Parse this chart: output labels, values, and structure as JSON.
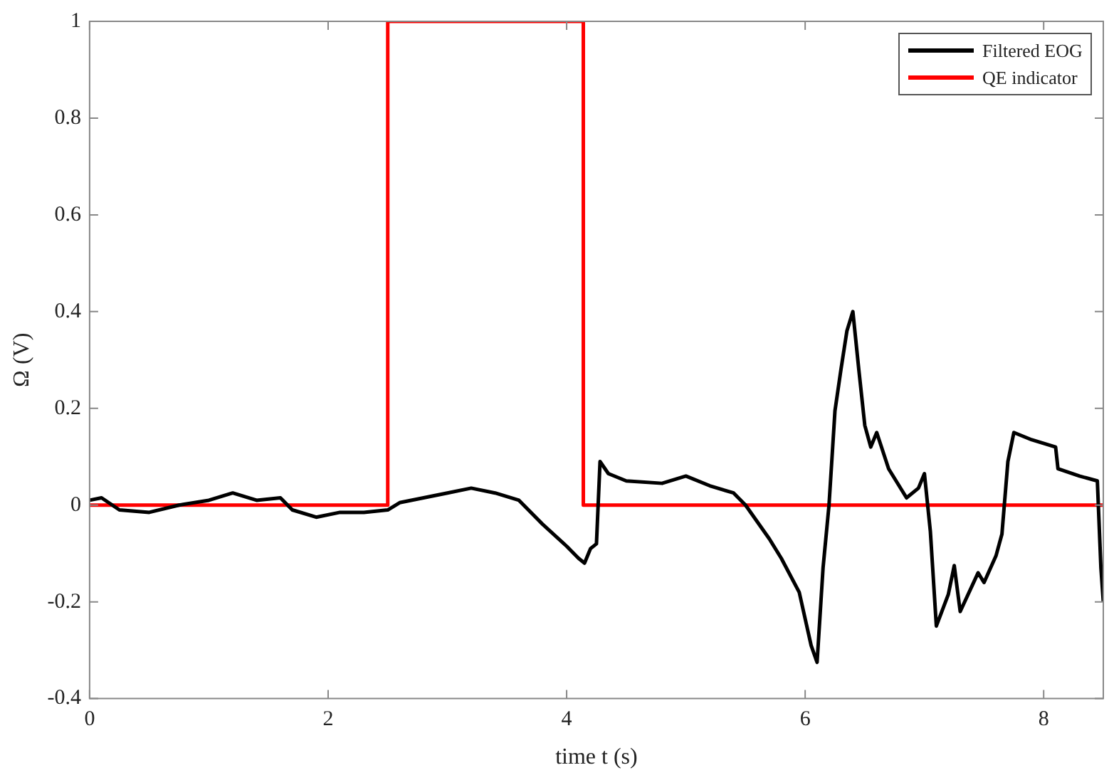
{
  "chart_data": {
    "type": "line",
    "xlabel": "time t (s)",
    "ylabel": "Ω (V)",
    "xlim": [
      0,
      8.5
    ],
    "xticks": [
      0,
      2,
      4,
      6,
      8
    ],
    "ylim": [
      -0.4,
      1
    ],
    "yticks": [
      -0.4,
      -0.2,
      0,
      0.2,
      0.4,
      0.6,
      0.8,
      1
    ],
    "grid": false,
    "legend": "top right",
    "marker": "none",
    "series": [
      {
        "name": "Filtered EOG",
        "color": "#000000",
        "x": [
          0,
          0.1,
          0.25,
          0.5,
          0.75,
          1.0,
          1.2,
          1.4,
          1.6,
          1.7,
          1.9,
          2.1,
          2.3,
          2.5,
          2.6,
          2.8,
          3.0,
          3.2,
          3.4,
          3.6,
          3.8,
          4.0,
          4.1,
          4.15,
          4.2,
          4.25,
          4.28,
          4.35,
          4.5,
          4.8,
          5.0,
          5.2,
          5.4,
          5.5,
          5.7,
          5.8,
          5.95,
          6.05,
          6.1,
          6.15,
          6.2,
          6.25,
          6.3,
          6.35,
          6.4,
          6.45,
          6.5,
          6.55,
          6.6,
          6.7,
          6.85,
          6.95,
          7.0,
          7.05,
          7.1,
          7.2,
          7.25,
          7.3,
          7.45,
          7.5,
          7.6,
          7.65,
          7.7,
          7.75,
          7.9,
          8.1,
          8.12,
          8.3,
          8.45,
          8.48,
          8.5
        ],
        "values": [
          0.01,
          0.015,
          -0.01,
          -0.015,
          0,
          0.01,
          0.025,
          0.01,
          0.015,
          -0.01,
          -0.025,
          -0.015,
          -0.015,
          -0.01,
          0.005,
          0.015,
          0.025,
          0.035,
          0.025,
          0.01,
          -0.04,
          -0.085,
          -0.11,
          -0.12,
          -0.09,
          -0.08,
          0.09,
          0.065,
          0.05,
          0.045,
          0.06,
          0.04,
          0.025,
          0,
          -0.07,
          -0.11,
          -0.18,
          -0.29,
          -0.325,
          -0.13,
          0,
          0.195,
          0.28,
          0.36,
          0.4,
          0.28,
          0.165,
          0.12,
          0.15,
          0.075,
          0.015,
          0.035,
          0.065,
          -0.055,
          -0.25,
          -0.185,
          -0.125,
          -0.22,
          -0.14,
          -0.16,
          -0.105,
          -0.06,
          0.09,
          0.15,
          0.135,
          0.12,
          0.075,
          0.06,
          0.05,
          -0.13,
          -0.2
        ]
      },
      {
        "name": "QE indicator",
        "type": "step",
        "color": "#ff0000",
        "x": [
          0,
          2.5,
          4.14,
          8.5
        ],
        "values": [
          0,
          1,
          0,
          0
        ]
      }
    ]
  }
}
